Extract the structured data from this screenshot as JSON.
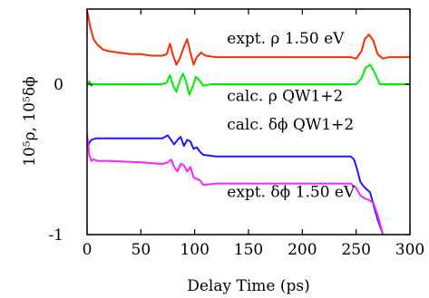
{
  "chart_data": {
    "type": "line",
    "xlabel": "Delay Time (ps)",
    "ylabel": "10⁵ρ, 10⁵δϕ",
    "xlim": [
      0,
      300
    ],
    "ylim": [
      -1,
      0.5
    ],
    "x_ticks": [
      0,
      50,
      100,
      150,
      200,
      250,
      300
    ],
    "x_tick_labels": [
      "0",
      "50",
      "100",
      "150",
      "200",
      "250",
      "300"
    ],
    "y_ticks": [
      0,
      -1
    ],
    "y_tick_labels": [
      "0",
      "-1"
    ],
    "grid": false,
    "legend": "none",
    "series": [
      {
        "name": "expt. ρ 1.50 eV",
        "color": "#ff2a00",
        "x": [
          0,
          3,
          6,
          10,
          15,
          20,
          30,
          40,
          50,
          60,
          70,
          74,
          77,
          80,
          83,
          86,
          90,
          93,
          96,
          99,
          102,
          106,
          110,
          120,
          150,
          200,
          245,
          250,
          255,
          258,
          262,
          266,
          270,
          275,
          280,
          290,
          300
        ],
        "y": [
          0.49,
          0.38,
          0.3,
          0.26,
          0.23,
          0.22,
          0.21,
          0.2,
          0.2,
          0.19,
          0.19,
          0.2,
          0.27,
          0.19,
          0.13,
          0.17,
          0.25,
          0.3,
          0.21,
          0.13,
          0.18,
          0.21,
          0.19,
          0.18,
          0.18,
          0.18,
          0.18,
          0.17,
          0.22,
          0.3,
          0.33,
          0.29,
          0.2,
          0.17,
          0.18,
          0.18,
          0.18
        ]
      },
      {
        "name": "calc. ρ QW1+2",
        "color": "#00ee00",
        "x": [
          0,
          2,
          4,
          6,
          10,
          20,
          50,
          70,
          74,
          77,
          80,
          83,
          86,
          89,
          92,
          95,
          98,
          101,
          104,
          108,
          115,
          150,
          200,
          245,
          250,
          255,
          259,
          263,
          267,
          272,
          280,
          300
        ],
        "y": [
          0.0,
          0.02,
          -0.01,
          0.0,
          0.0,
          0.0,
          0.0,
          0.0,
          0.01,
          0.06,
          -0.01,
          -0.05,
          0.02,
          0.07,
          0.02,
          -0.07,
          -0.02,
          0.05,
          0.03,
          -0.01,
          0.0,
          0.0,
          0.0,
          0.0,
          0.0,
          0.04,
          0.11,
          0.13,
          0.08,
          0.0,
          0.0,
          0.0
        ]
      },
      {
        "name": "calc. δϕ QW1+2",
        "color": "#1a1aff",
        "x": [
          0,
          1,
          2,
          4,
          8,
          12,
          20,
          50,
          70,
          75,
          78,
          81,
          84,
          87,
          90,
          93,
          96,
          99,
          102,
          105,
          108,
          120,
          150,
          200,
          245,
          248,
          251,
          254,
          257,
          260,
          263,
          266,
          270,
          275
        ],
        "y": [
          -0.37,
          -0.41,
          -0.39,
          -0.37,
          -0.36,
          -0.36,
          -0.36,
          -0.36,
          -0.36,
          -0.34,
          -0.37,
          -0.4,
          -0.37,
          -0.35,
          -0.41,
          -0.37,
          -0.38,
          -0.43,
          -0.42,
          -0.45,
          -0.47,
          -0.48,
          -0.48,
          -0.48,
          -0.48,
          -0.5,
          -0.57,
          -0.65,
          -0.68,
          -0.7,
          -0.72,
          -0.8,
          -0.9,
          -1.0
        ]
      },
      {
        "name": "expt. δϕ 1.50 eV",
        "color": "#ff22ff",
        "x": [
          0,
          2,
          4,
          6,
          10,
          20,
          50,
          70,
          75,
          78,
          81,
          84,
          87,
          90,
          93,
          96,
          99,
          102,
          105,
          108,
          120,
          150,
          200,
          245,
          250,
          254,
          258,
          262,
          266,
          270,
          275
        ],
        "y": [
          -0.33,
          -0.47,
          -0.51,
          -0.5,
          -0.51,
          -0.51,
          -0.52,
          -0.53,
          -0.52,
          -0.5,
          -0.55,
          -0.58,
          -0.53,
          -0.54,
          -0.58,
          -0.55,
          -0.62,
          -0.63,
          -0.64,
          -0.67,
          -0.66,
          -0.66,
          -0.66,
          -0.66,
          -0.69,
          -0.74,
          -0.76,
          -0.77,
          -0.79,
          -0.87,
          -1.0
        ]
      }
    ],
    "annotations": [
      {
        "text": "expt. ρ 1.50 eV",
        "x": 130,
        "y": 0.27
      },
      {
        "text": "calc. ρ QW1+2",
        "x": 130,
        "y": -0.11
      },
      {
        "text": "calc. δϕ QW1+2",
        "x": 130,
        "y": -0.3
      },
      {
        "text": "expt. δϕ 1.50 eV",
        "x": 130,
        "y": -0.75
      }
    ]
  }
}
